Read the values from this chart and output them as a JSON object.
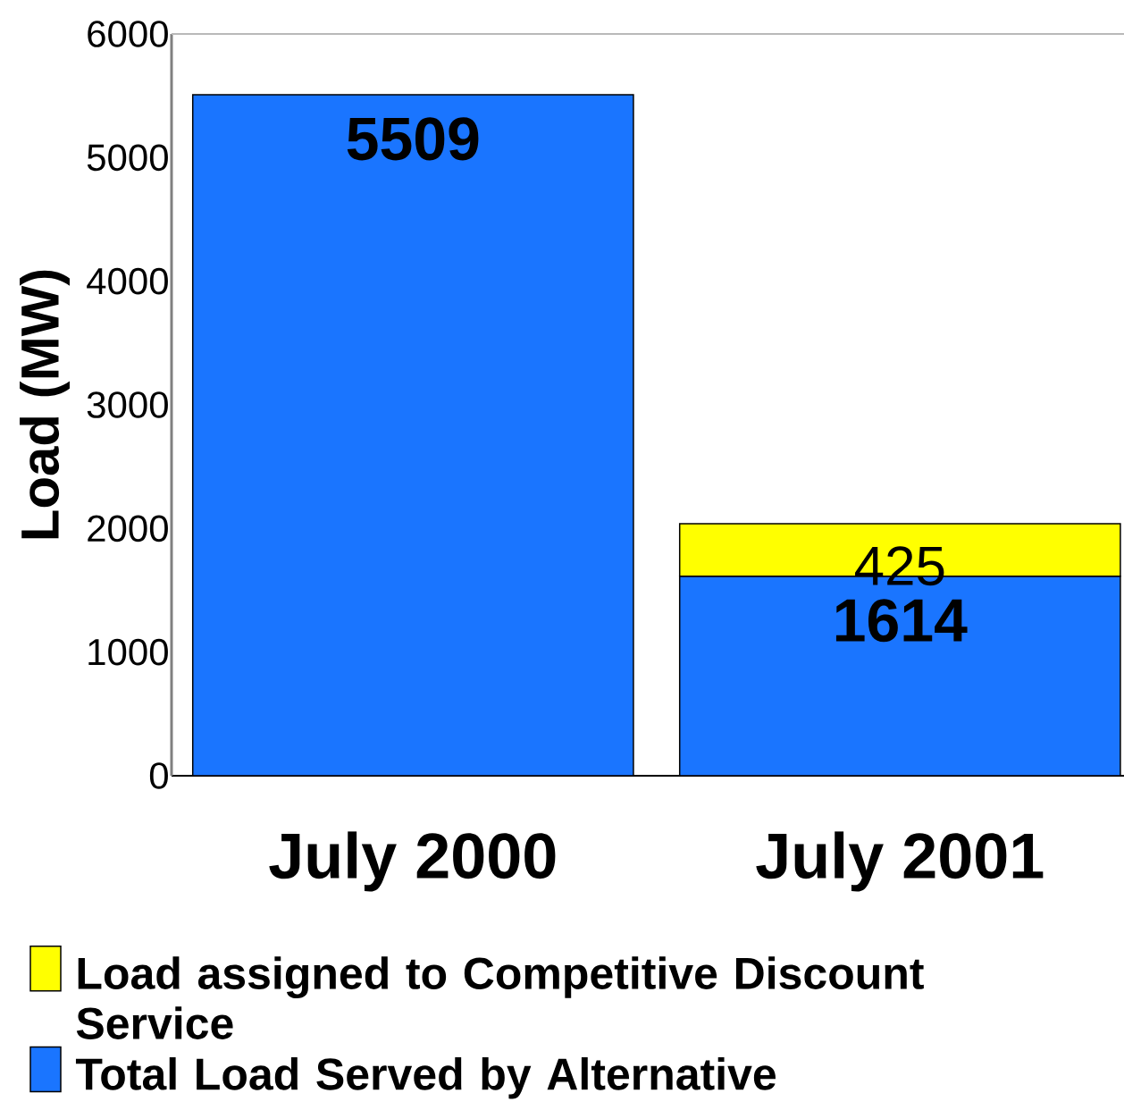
{
  "chart_data": {
    "type": "bar",
    "stacked": true,
    "ylabel": "Load (MW)",
    "categories": [
      "July 2000",
      "July 2001"
    ],
    "series": [
      {
        "name": "Total Load Served by Alternative",
        "color": "#1a75ff",
        "values": [
          5509,
          1614
        ]
      },
      {
        "name": "Load assigned to Competitive Discount Service",
        "color": "#ffff00",
        "values": [
          null,
          425
        ]
      }
    ],
    "ylim": [
      0,
      6000
    ],
    "yticks": [
      0,
      1000,
      2000,
      3000,
      4000,
      5000,
      6000
    ],
    "data_labels": true,
    "legend": "bottom"
  }
}
